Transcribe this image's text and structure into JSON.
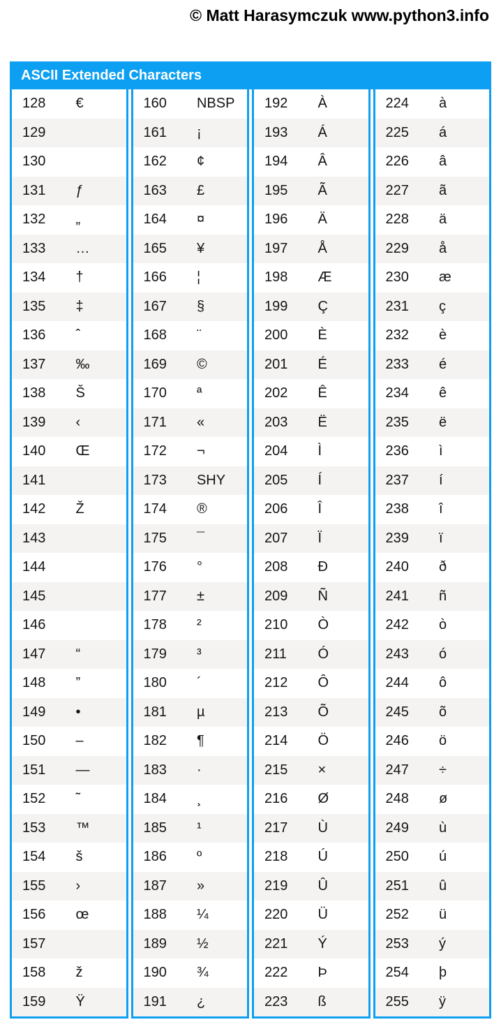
{
  "page": {
    "copyright": "© Matt Harasymczuk www.python3.info"
  },
  "colors": {
    "accent_blue": "#0d9ff2",
    "row_alt": "#f4f3f1",
    "title_text": "#ffffff"
  },
  "table": {
    "title": "ASCII Extended Characters",
    "columns": [
      {
        "rows": [
          {
            "code": "128",
            "glyph": "€"
          },
          {
            "code": "129",
            "glyph": ""
          },
          {
            "code": "130",
            "glyph": ""
          },
          {
            "code": "131",
            "glyph": "ƒ"
          },
          {
            "code": "132",
            "glyph": "„"
          },
          {
            "code": "133",
            "glyph": "…"
          },
          {
            "code": "134",
            "glyph": "†"
          },
          {
            "code": "135",
            "glyph": "‡"
          },
          {
            "code": "136",
            "glyph": "ˆ"
          },
          {
            "code": "137",
            "glyph": "‰"
          },
          {
            "code": "138",
            "glyph": "Š"
          },
          {
            "code": "139",
            "glyph": "‹"
          },
          {
            "code": "140",
            "glyph": "Œ"
          },
          {
            "code": "141",
            "glyph": ""
          },
          {
            "code": "142",
            "glyph": "Ž"
          },
          {
            "code": "143",
            "glyph": ""
          },
          {
            "code": "144",
            "glyph": ""
          },
          {
            "code": "145",
            "glyph": ""
          },
          {
            "code": "146",
            "glyph": ""
          },
          {
            "code": "147",
            "glyph": "“"
          },
          {
            "code": "148",
            "glyph": "”"
          },
          {
            "code": "149",
            "glyph": "•"
          },
          {
            "code": "150",
            "glyph": "–"
          },
          {
            "code": "151",
            "glyph": "—"
          },
          {
            "code": "152",
            "glyph": "˜"
          },
          {
            "code": "153",
            "glyph": "™"
          },
          {
            "code": "154",
            "glyph": "š"
          },
          {
            "code": "155",
            "glyph": "›"
          },
          {
            "code": "156",
            "glyph": "œ"
          },
          {
            "code": "157",
            "glyph": ""
          },
          {
            "code": "158",
            "glyph": "ž"
          },
          {
            "code": "159",
            "glyph": "Ÿ"
          }
        ]
      },
      {
        "rows": [
          {
            "code": "160",
            "glyph": "NBSP"
          },
          {
            "code": "161",
            "glyph": "¡"
          },
          {
            "code": "162",
            "glyph": "¢"
          },
          {
            "code": "163",
            "glyph": "£"
          },
          {
            "code": "164",
            "glyph": "¤"
          },
          {
            "code": "165",
            "glyph": "¥"
          },
          {
            "code": "166",
            "glyph": "¦"
          },
          {
            "code": "167",
            "glyph": "§"
          },
          {
            "code": "168",
            "glyph": "¨"
          },
          {
            "code": "169",
            "glyph": "©"
          },
          {
            "code": "170",
            "glyph": "ª"
          },
          {
            "code": "171",
            "glyph": "«"
          },
          {
            "code": "172",
            "glyph": "¬"
          },
          {
            "code": "173",
            "glyph": "SHY"
          },
          {
            "code": "174",
            "glyph": "®"
          },
          {
            "code": "175",
            "glyph": "¯"
          },
          {
            "code": "176",
            "glyph": "°"
          },
          {
            "code": "177",
            "glyph": "±"
          },
          {
            "code": "178",
            "glyph": "²"
          },
          {
            "code": "179",
            "glyph": "³"
          },
          {
            "code": "180",
            "glyph": "´"
          },
          {
            "code": "181",
            "glyph": "µ"
          },
          {
            "code": "182",
            "glyph": "¶"
          },
          {
            "code": "183",
            "glyph": "·"
          },
          {
            "code": "184",
            "glyph": "¸"
          },
          {
            "code": "185",
            "glyph": "¹"
          },
          {
            "code": "186",
            "glyph": "º"
          },
          {
            "code": "187",
            "glyph": "»"
          },
          {
            "code": "188",
            "glyph": "¼"
          },
          {
            "code": "189",
            "glyph": "½"
          },
          {
            "code": "190",
            "glyph": "¾"
          },
          {
            "code": "191",
            "glyph": "¿"
          }
        ]
      },
      {
        "rows": [
          {
            "code": "192",
            "glyph": "À"
          },
          {
            "code": "193",
            "glyph": "Á"
          },
          {
            "code": "194",
            "glyph": "Â"
          },
          {
            "code": "195",
            "glyph": "Ã"
          },
          {
            "code": "196",
            "glyph": "Ä"
          },
          {
            "code": "197",
            "glyph": "Å"
          },
          {
            "code": "198",
            "glyph": "Æ"
          },
          {
            "code": "199",
            "glyph": "Ç"
          },
          {
            "code": "200",
            "glyph": "È"
          },
          {
            "code": "201",
            "glyph": "É"
          },
          {
            "code": "202",
            "glyph": "Ê"
          },
          {
            "code": "203",
            "glyph": "Ë"
          },
          {
            "code": "204",
            "glyph": "Ì"
          },
          {
            "code": "205",
            "glyph": "Í"
          },
          {
            "code": "206",
            "glyph": "Î"
          },
          {
            "code": "207",
            "glyph": "Ï"
          },
          {
            "code": "208",
            "glyph": "Ð"
          },
          {
            "code": "209",
            "glyph": "Ñ"
          },
          {
            "code": "210",
            "glyph": "Ò"
          },
          {
            "code": "211",
            "glyph": "Ó"
          },
          {
            "code": "212",
            "glyph": "Ô"
          },
          {
            "code": "213",
            "glyph": "Õ"
          },
          {
            "code": "214",
            "glyph": "Ö"
          },
          {
            "code": "215",
            "glyph": "×"
          },
          {
            "code": "216",
            "glyph": "Ø"
          },
          {
            "code": "217",
            "glyph": "Ù"
          },
          {
            "code": "218",
            "glyph": "Ú"
          },
          {
            "code": "219",
            "glyph": "Û"
          },
          {
            "code": "220",
            "glyph": "Ü"
          },
          {
            "code": "221",
            "glyph": "Ý"
          },
          {
            "code": "222",
            "glyph": "Þ"
          },
          {
            "code": "223",
            "glyph": "ß"
          }
        ]
      },
      {
        "rows": [
          {
            "code": "224",
            "glyph": "à"
          },
          {
            "code": "225",
            "glyph": "á"
          },
          {
            "code": "226",
            "glyph": "â"
          },
          {
            "code": "227",
            "glyph": "ã"
          },
          {
            "code": "228",
            "glyph": "ä"
          },
          {
            "code": "229",
            "glyph": "å"
          },
          {
            "code": "230",
            "glyph": "æ"
          },
          {
            "code": "231",
            "glyph": "ç"
          },
          {
            "code": "232",
            "glyph": "è"
          },
          {
            "code": "233",
            "glyph": "é"
          },
          {
            "code": "234",
            "glyph": "ê"
          },
          {
            "code": "235",
            "glyph": "ë"
          },
          {
            "code": "236",
            "glyph": "ì"
          },
          {
            "code": "237",
            "glyph": "í"
          },
          {
            "code": "238",
            "glyph": "î"
          },
          {
            "code": "239",
            "glyph": "ï"
          },
          {
            "code": "240",
            "glyph": "ð"
          },
          {
            "code": "241",
            "glyph": "ñ"
          },
          {
            "code": "242",
            "glyph": "ò"
          },
          {
            "code": "243",
            "glyph": "ó"
          },
          {
            "code": "244",
            "glyph": "ô"
          },
          {
            "code": "245",
            "glyph": "õ"
          },
          {
            "code": "246",
            "glyph": "ö"
          },
          {
            "code": "247",
            "glyph": "÷"
          },
          {
            "code": "248",
            "glyph": "ø"
          },
          {
            "code": "249",
            "glyph": "ù"
          },
          {
            "code": "250",
            "glyph": "ú"
          },
          {
            "code": "251",
            "glyph": "û"
          },
          {
            "code": "252",
            "glyph": "ü"
          },
          {
            "code": "253",
            "glyph": "ý"
          },
          {
            "code": "254",
            "glyph": "þ"
          },
          {
            "code": "255",
            "glyph": "ÿ"
          }
        ]
      }
    ]
  }
}
